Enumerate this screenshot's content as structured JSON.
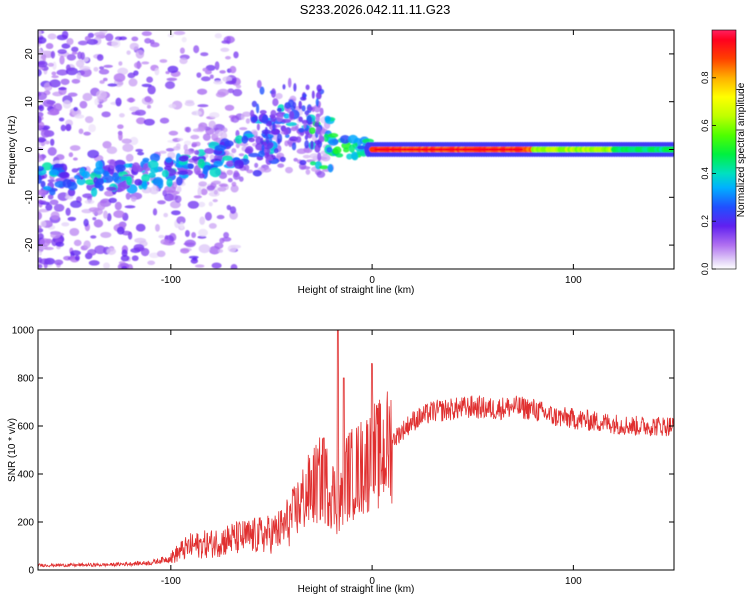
{
  "title": "S233.2026.042.11.11.G23",
  "chart_data": [
    {
      "type": "heatmap",
      "xlabel": "Height of straight line (km)",
      "ylabel": "Frequency (Hz)",
      "xlim": [
        -166,
        150
      ],
      "ylim": [
        -25,
        25
      ],
      "xticks": [
        -100,
        0,
        100
      ],
      "xtick_labels": [
        "-100",
        "0",
        "100"
      ],
      "yticks": [
        -20,
        -10,
        0,
        10,
        20
      ],
      "ytick_labels": [
        "-20",
        "-10",
        "0",
        "10",
        "20"
      ],
      "colorbar": {
        "label": "Normalized spectral amplitude",
        "range": [
          0,
          1
        ],
        "ticks": [
          0.0,
          0.2,
          0.4,
          0.6,
          0.8
        ],
        "tick_labels": [
          "0.0",
          "0.2",
          "0.4",
          "0.6",
          "0.8"
        ]
      },
      "ridge": [
        {
          "x": -160,
          "y": -6.0
        },
        {
          "x": -140,
          "y": -6.0
        },
        {
          "x": -120,
          "y": -5.5
        },
        {
          "x": -100,
          "y": -4.0
        },
        {
          "x": -85,
          "y": -3.0
        },
        {
          "x": -70,
          "y": -1.0
        },
        {
          "x": -55,
          "y": 1.0
        },
        {
          "x": -45,
          "y": 4.0
        },
        {
          "x": -35,
          "y": 3.0
        },
        {
          "x": -25,
          "y": 1.5
        },
        {
          "x": -15,
          "y": 0.5
        },
        {
          "x": 0,
          "y": 0.0
        },
        {
          "x": 150,
          "y": 0.0
        }
      ]
    },
    {
      "type": "line",
      "xlabel": "Height of straight line (km)",
      "ylabel": "SNR (10 * v/v)",
      "xlim": [
        -166,
        150
      ],
      "ylim": [
        0,
        1000
      ],
      "xticks": [
        -100,
        0,
        100
      ],
      "xtick_labels": [
        "-100",
        "0",
        "100"
      ],
      "yticks": [
        0,
        200,
        400,
        600,
        800,
        1000
      ],
      "ytick_labels": [
        "0",
        "200",
        "400",
        "600",
        "800",
        "1000"
      ],
      "color": "#e03030",
      "series": [
        {
          "name": "SNR",
          "x": [
            -166,
            -150,
            -130,
            -110,
            -100,
            -95,
            -90,
            -80,
            -70,
            -60,
            -50,
            -45,
            -40,
            -35,
            -30,
            -25,
            -20,
            -16,
            -14,
            -10,
            -5,
            0,
            5,
            10,
            15,
            20,
            25,
            30,
            40,
            50,
            60,
            70,
            80,
            90,
            100,
            110,
            120,
            130,
            140,
            150
          ],
          "y": [
            20,
            20,
            22,
            30,
            50,
            80,
            100,
            110,
            130,
            140,
            150,
            170,
            220,
            290,
            340,
            380,
            330,
            250,
            390,
            400,
            430,
            470,
            480,
            540,
            580,
            620,
            640,
            660,
            670,
            680,
            670,
            680,
            670,
            640,
            630,
            620,
            610,
            600,
            600,
            600
          ],
          "spikes": [
            {
              "x": -24,
              "y": 550
            },
            {
              "x": -17,
              "y": 1000
            },
            {
              "x": -14,
              "y": 800
            },
            {
              "x": 0,
              "y": 860
            }
          ]
        }
      ]
    }
  ]
}
